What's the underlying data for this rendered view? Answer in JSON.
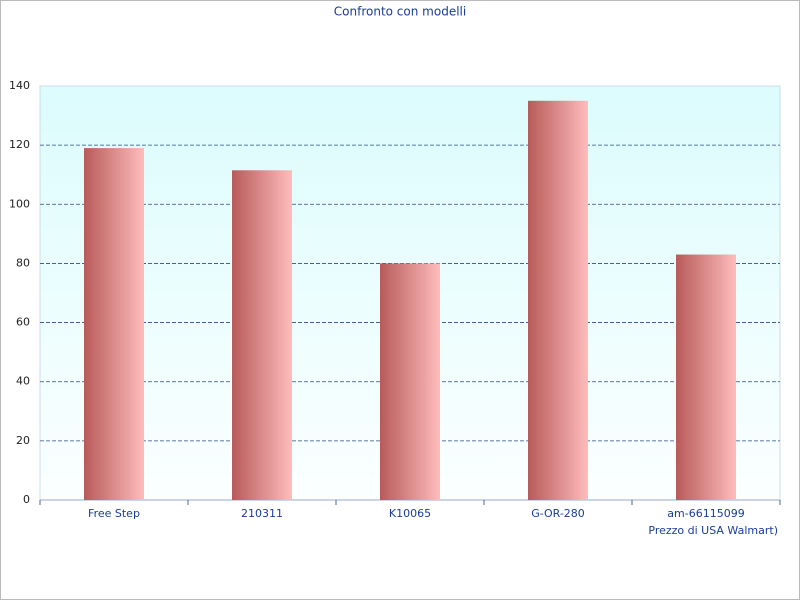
{
  "chart_data": {
    "type": "bar",
    "title": "Confronto con modelli",
    "x_label": "Prezzo di USA Walmart)",
    "categories": [
      "Free Step",
      "210311",
      "K10065",
      "G-OR-280",
      "am-66115099"
    ],
    "values": [
      119,
      111.5,
      80,
      135,
      83
    ],
    "color": "#b85a5a",
    "ylim": [
      0,
      140
    ],
    "yticks": [
      0,
      20,
      40,
      60,
      80,
      100,
      120,
      140
    ],
    "grid": true
  }
}
